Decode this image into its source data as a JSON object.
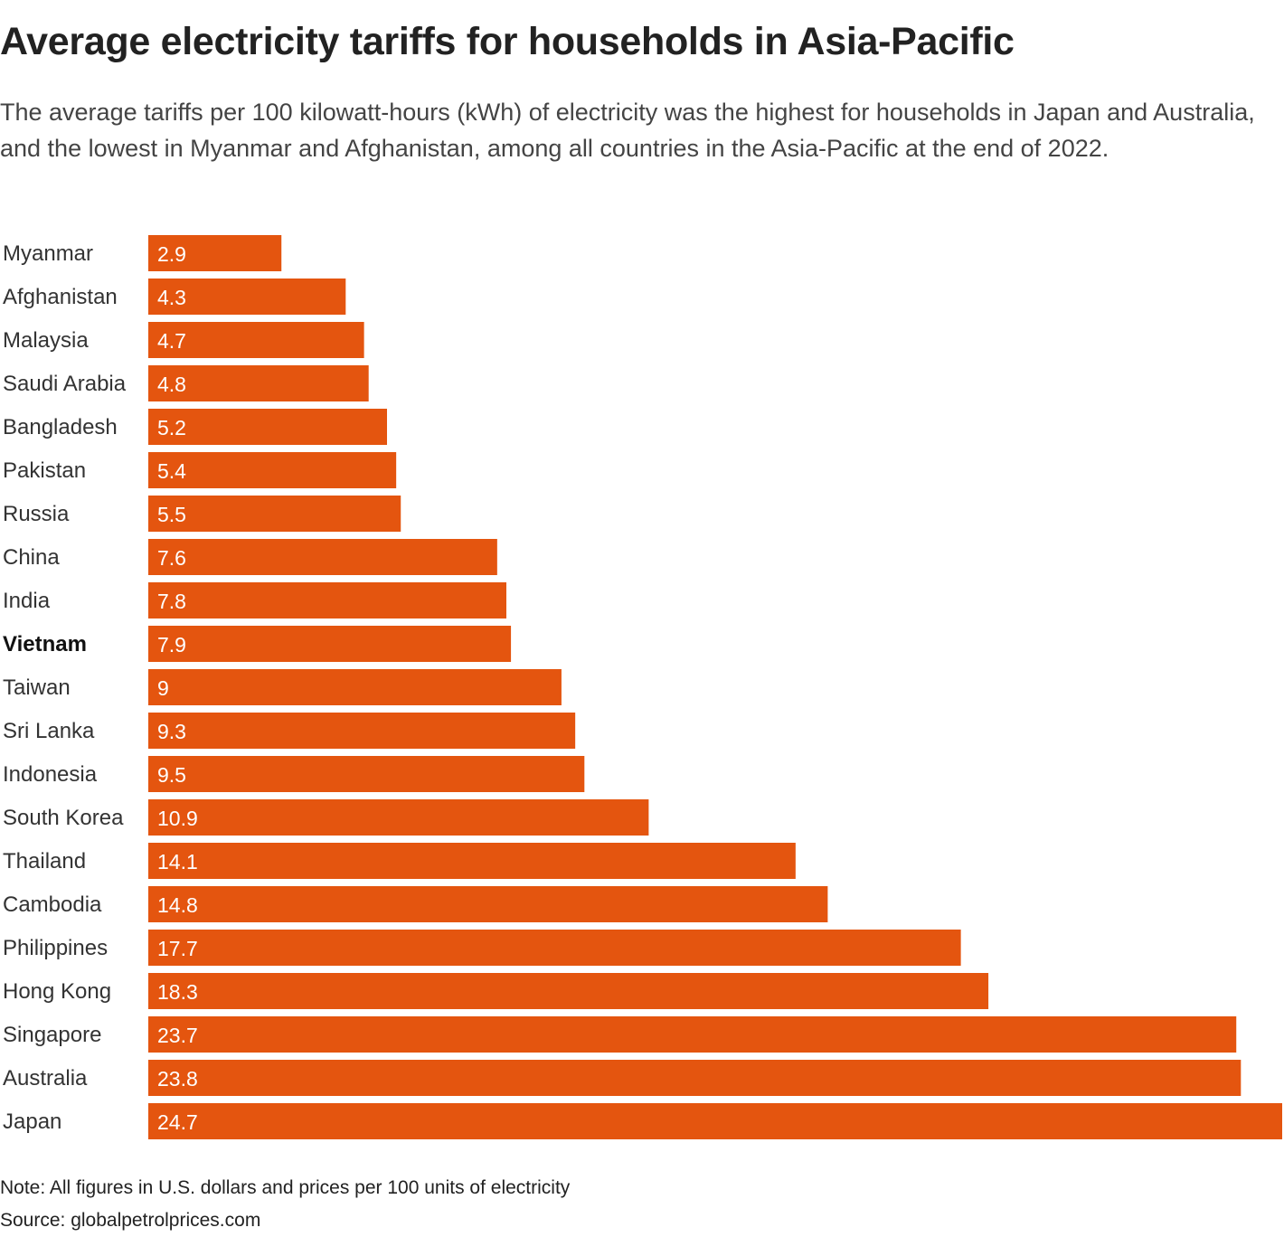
{
  "chart_data": {
    "type": "bar",
    "orientation": "horizontal",
    "title": "Average electricity tariffs for households in Asia-Pacific",
    "subtitle": "The average tariffs per 100 kilowatt-hours (kWh) of electricity was the highest for households in Japan and Australia, and the lowest in Myanmar and Afghanistan, among all countries in the Asia-Pacific at the end of 2022.",
    "categories": [
      "Myanmar",
      "Afghanistan",
      "Malaysia",
      "Saudi Arabia",
      "Bangladesh",
      "Pakistan",
      "Russia",
      "China",
      "India",
      "Vietnam",
      "Taiwan",
      "Sri Lanka",
      "Indonesia",
      "South Korea",
      "Thailand",
      "Cambodia",
      "Philippines",
      "Hong Kong",
      "Singapore",
      "Australia",
      "Japan"
    ],
    "values": [
      2.9,
      4.3,
      4.7,
      4.8,
      5.2,
      5.4,
      5.5,
      7.6,
      7.8,
      7.9,
      9,
      9.3,
      9.5,
      10.9,
      14.1,
      14.8,
      17.7,
      18.3,
      23.7,
      23.8,
      24.7
    ],
    "highlight": "Vietnam",
    "xlim": [
      0,
      24.7
    ],
    "grid": false,
    "bar_color": "#e4550f",
    "note": "Note: All figures in U.S. dollars and prices per 100 units of electricity",
    "source": "Source: globalpetrolprices.com"
  }
}
